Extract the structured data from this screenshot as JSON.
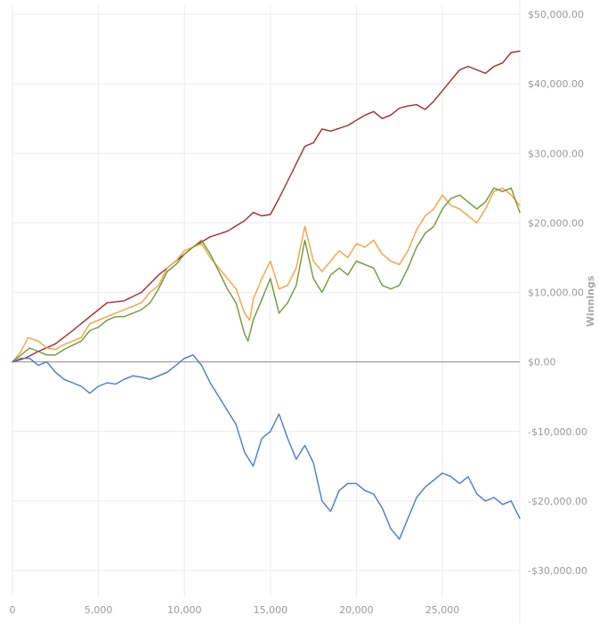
{
  "chart_data": {
    "type": "line",
    "title": "",
    "xlabel": "",
    "ylabel": "Winnings",
    "xlim": [
      0,
      29500
    ],
    "ylim": [
      -30000,
      50000
    ],
    "grid": true,
    "x_ticks": [
      {
        "value": 0,
        "label": "0"
      },
      {
        "value": 5000,
        "label": "5,000"
      },
      {
        "value": 10000,
        "label": "10,000"
      },
      {
        "value": 15000,
        "label": "15,000"
      },
      {
        "value": 20000,
        "label": "20,000"
      },
      {
        "value": 25000,
        "label": "25,000"
      }
    ],
    "y_ticks": [
      {
        "value": 50000,
        "label": "$50,000.00"
      },
      {
        "value": 40000,
        "label": "$40,000.00"
      },
      {
        "value": 30000,
        "label": "$30,000.00"
      },
      {
        "value": 20000,
        "label": "$20,000.00"
      },
      {
        "value": 10000,
        "label": "$10,000.00"
      },
      {
        "value": 0,
        "label": "$0.00"
      },
      {
        "value": -10000,
        "label": "-$10,000.00"
      },
      {
        "value": -20000,
        "label": "-$20,000.00"
      },
      {
        "value": -30000,
        "label": "-$30,000.00"
      }
    ],
    "series": [
      {
        "color": "#a52a2a",
        "points": [
          [
            0,
            0
          ],
          [
            300,
            200
          ],
          [
            800,
            600
          ],
          [
            1500,
            1500
          ],
          [
            2500,
            2600
          ],
          [
            3500,
            4500
          ],
          [
            4500,
            6500
          ],
          [
            5500,
            8500
          ],
          [
            6500,
            8800
          ],
          [
            7500,
            10000
          ],
          [
            8500,
            12500
          ],
          [
            9500,
            14500
          ],
          [
            10500,
            16500
          ],
          [
            11500,
            18000
          ],
          [
            12500,
            18800
          ],
          [
            13500,
            20300
          ],
          [
            14000,
            21500
          ],
          [
            14500,
            21000
          ],
          [
            15000,
            21200
          ],
          [
            15500,
            23500
          ],
          [
            16000,
            26000
          ],
          [
            16500,
            28500
          ],
          [
            17000,
            31000
          ],
          [
            17500,
            31500
          ],
          [
            18000,
            33500
          ],
          [
            18500,
            33200
          ],
          [
            19500,
            34000
          ],
          [
            20500,
            35500
          ],
          [
            21000,
            36000
          ],
          [
            21500,
            35000
          ],
          [
            22000,
            35500
          ],
          [
            22500,
            36500
          ],
          [
            23000,
            36800
          ],
          [
            23500,
            37000
          ],
          [
            24000,
            36300
          ],
          [
            24500,
            37500
          ],
          [
            25000,
            39000
          ],
          [
            25500,
            40500
          ],
          [
            26000,
            42000
          ],
          [
            26500,
            42500
          ],
          [
            27000,
            42000
          ],
          [
            27500,
            41500
          ],
          [
            28000,
            42500
          ],
          [
            28500,
            43000
          ],
          [
            29000,
            44500
          ],
          [
            29500,
            44700
          ]
        ]
      },
      {
        "color": "#ffa040",
        "points": [
          [
            0,
            0
          ],
          [
            500,
            1500
          ],
          [
            900,
            3500
          ],
          [
            1500,
            3000
          ],
          [
            2000,
            2000
          ],
          [
            2500,
            1800
          ],
          [
            3000,
            2500
          ],
          [
            4000,
            3500
          ],
          [
            4500,
            5500
          ],
          [
            5000,
            6000
          ],
          [
            5500,
            6500
          ],
          [
            6000,
            7000
          ],
          [
            6500,
            7500
          ],
          [
            7000,
            8000
          ],
          [
            7500,
            8500
          ],
          [
            8000,
            10000
          ],
          [
            8500,
            11000
          ],
          [
            9000,
            13500
          ],
          [
            9500,
            14500
          ],
          [
            10000,
            16000
          ],
          [
            10500,
            16500
          ],
          [
            11000,
            17000
          ],
          [
            11500,
            15000
          ],
          [
            12000,
            13500
          ],
          [
            12500,
            12000
          ],
          [
            13000,
            10500
          ],
          [
            13500,
            7000
          ],
          [
            13800,
            6000
          ],
          [
            14000,
            9000
          ],
          [
            14500,
            12000
          ],
          [
            15000,
            14500
          ],
          [
            15500,
            10500
          ],
          [
            16000,
            11000
          ],
          [
            16500,
            13500
          ],
          [
            17000,
            19500
          ],
          [
            17500,
            14500
          ],
          [
            18000,
            13000
          ],
          [
            18500,
            14500
          ],
          [
            19000,
            16000
          ],
          [
            19500,
            15000
          ],
          [
            20000,
            17000
          ],
          [
            20500,
            16500
          ],
          [
            21000,
            17500
          ],
          [
            21500,
            15500
          ],
          [
            22000,
            14500
          ],
          [
            22500,
            14000
          ],
          [
            23000,
            16000
          ],
          [
            23500,
            19000
          ],
          [
            24000,
            21000
          ],
          [
            24500,
            22000
          ],
          [
            25000,
            24000
          ],
          [
            25500,
            22500
          ],
          [
            26000,
            22000
          ],
          [
            26500,
            21000
          ],
          [
            27000,
            20000
          ],
          [
            27500,
            22000
          ],
          [
            28000,
            24500
          ],
          [
            28500,
            25000
          ],
          [
            29000,
            24000
          ],
          [
            29500,
            22500
          ]
        ]
      },
      {
        "color": "#6f9a36",
        "points": [
          [
            0,
            0
          ],
          [
            500,
            1000
          ],
          [
            1000,
            2000
          ],
          [
            1500,
            1500
          ],
          [
            2000,
            1000
          ],
          [
            2500,
            1000
          ],
          [
            3000,
            1800
          ],
          [
            4000,
            3000
          ],
          [
            4500,
            4500
          ],
          [
            5000,
            5000
          ],
          [
            5500,
            6000
          ],
          [
            6000,
            6500
          ],
          [
            6500,
            6500
          ],
          [
            7000,
            7000
          ],
          [
            7500,
            7500
          ],
          [
            8000,
            8500
          ],
          [
            8500,
            10500
          ],
          [
            9000,
            13000
          ],
          [
            9500,
            14000
          ],
          [
            10000,
            15500
          ],
          [
            10500,
            16500
          ],
          [
            11000,
            17500
          ],
          [
            11500,
            15500
          ],
          [
            12000,
            13000
          ],
          [
            12500,
            10500
          ],
          [
            13000,
            8500
          ],
          [
            13500,
            4000
          ],
          [
            13700,
            3000
          ],
          [
            14000,
            6000
          ],
          [
            14500,
            9000
          ],
          [
            15000,
            12000
          ],
          [
            15500,
            7000
          ],
          [
            16000,
            8500
          ],
          [
            16500,
            11000
          ],
          [
            17000,
            17500
          ],
          [
            17500,
            12000
          ],
          [
            18000,
            10000
          ],
          [
            18500,
            12500
          ],
          [
            19000,
            13500
          ],
          [
            19500,
            12500
          ],
          [
            20000,
            14500
          ],
          [
            20500,
            14000
          ],
          [
            21000,
            13500
          ],
          [
            21500,
            11000
          ],
          [
            22000,
            10500
          ],
          [
            22500,
            11000
          ],
          [
            23000,
            13500
          ],
          [
            23500,
            16500
          ],
          [
            24000,
            18500
          ],
          [
            24500,
            19500
          ],
          [
            25000,
            22000
          ],
          [
            25500,
            23500
          ],
          [
            26000,
            24000
          ],
          [
            26500,
            23000
          ],
          [
            27000,
            22000
          ],
          [
            27500,
            23000
          ],
          [
            28000,
            25000
          ],
          [
            28500,
            24500
          ],
          [
            29000,
            25000
          ],
          [
            29500,
            21500
          ]
        ]
      },
      {
        "color": "#4a78e0",
        "points": [
          [
            0,
            0
          ],
          [
            500,
            500
          ],
          [
            1000,
            500
          ],
          [
            1500,
            -500
          ],
          [
            2000,
            0
          ],
          [
            2500,
            -1500
          ],
          [
            3000,
            -2500
          ],
          [
            3500,
            -3000
          ],
          [
            4000,
            -3500
          ],
          [
            4500,
            -4500
          ],
          [
            5000,
            -3500
          ],
          [
            5500,
            -3000
          ],
          [
            6000,
            -3200
          ],
          [
            6500,
            -2500
          ],
          [
            7000,
            -2000
          ],
          [
            7500,
            -2200
          ],
          [
            8000,
            -2500
          ],
          [
            8500,
            -2000
          ],
          [
            9000,
            -1500
          ],
          [
            9500,
            -500
          ],
          [
            10000,
            500
          ],
          [
            10500,
            1000
          ],
          [
            11000,
            -500
          ],
          [
            11500,
            -3000
          ],
          [
            12000,
            -5000
          ],
          [
            12500,
            -7000
          ],
          [
            13000,
            -9000
          ],
          [
            13500,
            -13000
          ],
          [
            14000,
            -15000
          ],
          [
            14500,
            -11000
          ],
          [
            15000,
            -10000
          ],
          [
            15500,
            -7500
          ],
          [
            16000,
            -11000
          ],
          [
            16500,
            -14000
          ],
          [
            17000,
            -12000
          ],
          [
            17500,
            -14500
          ],
          [
            18000,
            -20000
          ],
          [
            18500,
            -21500
          ],
          [
            19000,
            -18500
          ],
          [
            19500,
            -17500
          ],
          [
            20000,
            -17500
          ],
          [
            20500,
            -18500
          ],
          [
            21000,
            -19000
          ],
          [
            21500,
            -21000
          ],
          [
            22000,
            -24000
          ],
          [
            22500,
            -25500
          ],
          [
            23000,
            -22500
          ],
          [
            23500,
            -19500
          ],
          [
            24000,
            -18000
          ],
          [
            24500,
            -17000
          ],
          [
            25000,
            -16000
          ],
          [
            25500,
            -16500
          ],
          [
            26000,
            -17500
          ],
          [
            26500,
            -16500
          ],
          [
            27000,
            -19000
          ],
          [
            27500,
            -20000
          ],
          [
            28000,
            -19500
          ],
          [
            28500,
            -20500
          ],
          [
            29000,
            -20000
          ],
          [
            29500,
            -22500
          ]
        ]
      }
    ]
  }
}
